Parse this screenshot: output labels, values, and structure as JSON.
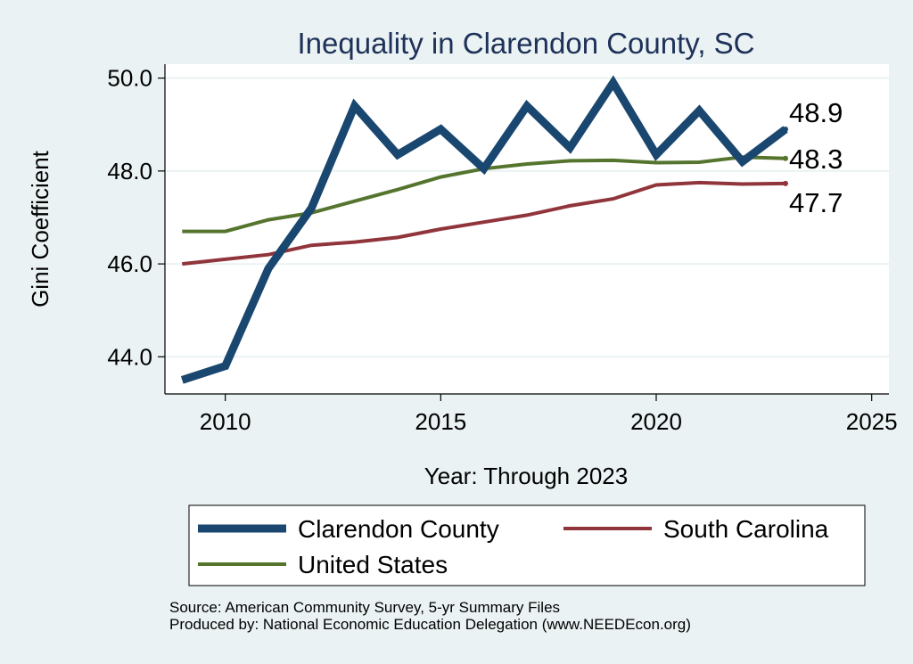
{
  "chart_data": {
    "type": "line",
    "title": "Inequality in Clarendon County, SC",
    "xlabel": "Year: Through 2023",
    "ylabel": "Gini Coefficient",
    "xlim": [
      2008.6,
      2025.4
    ],
    "ylim": [
      43.2,
      50.3
    ],
    "xticks": [
      2010,
      2015,
      2020,
      2025
    ],
    "yticks": [
      44,
      46,
      48,
      50
    ],
    "x": [
      2009,
      2010,
      2011,
      2012,
      2013,
      2014,
      2015,
      2016,
      2017,
      2018,
      2019,
      2020,
      2021,
      2022,
      2023
    ],
    "series": [
      {
        "name": "Clarendon County",
        "color": "#1a476f",
        "values": [
          43.5,
          43.8,
          45.9,
          47.2,
          49.4,
          48.35,
          48.9,
          48.05,
          49.4,
          48.5,
          49.9,
          48.35,
          49.3,
          48.2,
          48.9
        ],
        "end_label": "48.9"
      },
      {
        "name": "South Carolina",
        "color": "#90353b",
        "values": [
          46.0,
          46.1,
          46.2,
          46.4,
          46.47,
          46.57,
          46.75,
          46.9,
          47.05,
          47.25,
          47.4,
          47.7,
          47.75,
          47.72,
          47.73
        ],
        "end_label": "47.7"
      },
      {
        "name": "United States",
        "color": "#55752f",
        "values": [
          46.7,
          46.7,
          46.95,
          47.1,
          47.35,
          47.6,
          47.87,
          48.05,
          48.15,
          48.22,
          48.23,
          48.18,
          48.19,
          48.3,
          48.27
        ],
        "end_label": "48.3"
      }
    ],
    "legend": "bottom, two columns, boxed"
  },
  "source_line": "Source: American Community Survey, 5-yr Summary Files",
  "produced_line": "Produced by: National Economic Education Delegation (www.NEEDEcon.org)"
}
